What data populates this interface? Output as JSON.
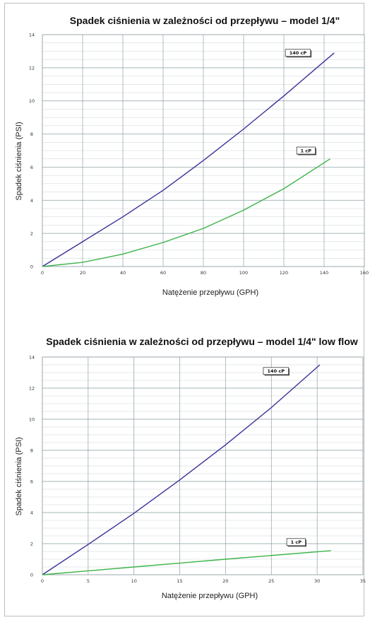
{
  "chart_data": [
    {
      "type": "line",
      "title": "Spadek ciśnienia w zależności od przepływu – model 1/4\"",
      "xlabel": "Natężenie przepływu (GPH)",
      "ylabel": "Spadek ciśnienia (PSI)",
      "xlim": [
        0,
        160
      ],
      "ylim": [
        0,
        14
      ],
      "xticks": [
        "0",
        "20",
        "40",
        "60",
        "80",
        "100",
        "120",
        "140",
        "160"
      ],
      "yticks": [
        "0",
        "2",
        "4",
        "6",
        "8",
        "10",
        "12",
        "14"
      ],
      "grid": true,
      "series": [
        {
          "name": "140 cP",
          "color": "#3b2f9a",
          "x": [
            0,
            20,
            40,
            60,
            80,
            100,
            120,
            145
          ],
          "y": [
            0,
            1.5,
            3.0,
            4.6,
            6.4,
            8.3,
            10.3,
            12.9
          ]
        },
        {
          "name": "1 cP",
          "color": "#3cb34a",
          "x": [
            0,
            20,
            40,
            60,
            80,
            100,
            120,
            143
          ],
          "y": [
            0,
            0.25,
            0.75,
            1.45,
            2.3,
            3.4,
            4.7,
            6.5
          ]
        }
      ],
      "annotations": [
        {
          "text": "140 cP",
          "at_x": 127,
          "at_y": 12.9
        },
        {
          "text": "1 cP",
          "at_x": 131,
          "at_y": 7.0
        }
      ]
    },
    {
      "type": "line",
      "title": "Spadek ciśnienia w zależności od przepływu – model 1/4\" low flow",
      "xlabel": "Natężenie przepływu (GPH)",
      "ylabel": "Spadek ciśnienia (PSI)",
      "xlim": [
        0,
        35
      ],
      "ylim": [
        0,
        14
      ],
      "xticks": [
        "0",
        "5",
        "10",
        "15",
        "20",
        "25",
        "30",
        "35"
      ],
      "yticks": [
        "0",
        "2",
        "4",
        "6",
        "8",
        "10",
        "12",
        "14"
      ],
      "grid": true,
      "series": [
        {
          "name": "140 cP",
          "color": "#3b2f9a",
          "x": [
            0,
            5,
            10,
            15,
            20,
            25,
            30.3
          ],
          "y": [
            0,
            1.95,
            3.95,
            6.1,
            8.35,
            10.75,
            13.5
          ]
        },
        {
          "name": "1 cP",
          "color": "#3cb34a",
          "x": [
            0,
            10,
            20,
            31.5
          ],
          "y": [
            0,
            0.5,
            1.0,
            1.55
          ]
        }
      ],
      "annotations": [
        {
          "text": "140 cP",
          "at_x": 25.5,
          "at_y": 13.1
        },
        {
          "text": "1 cP",
          "at_x": 27.7,
          "at_y": 2.1
        }
      ]
    }
  ]
}
